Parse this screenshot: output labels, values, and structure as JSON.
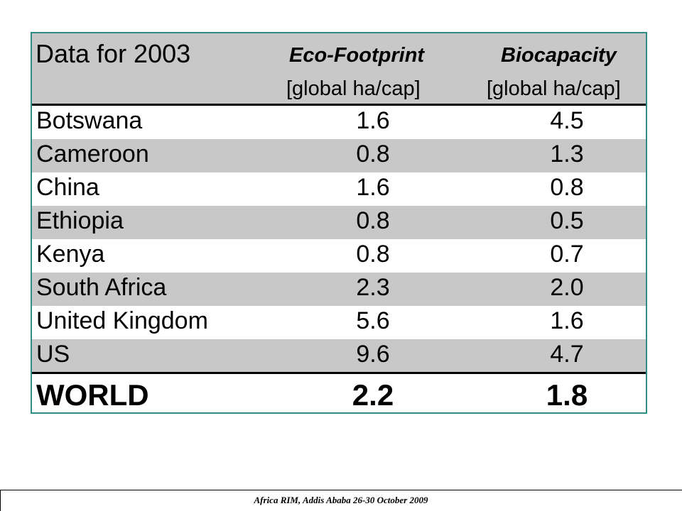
{
  "table": {
    "title": "Data for 2003",
    "col1_header": "Eco-Footprint",
    "col1_unit": "[global ha/cap]",
    "col2_header": "Biocapacity",
    "col2_unit": "[global ha/cap]",
    "rows": [
      {
        "country": "Botswana",
        "footprint": "1.6",
        "biocapacity": "4.5"
      },
      {
        "country": "Cameroon",
        "footprint": "0.8",
        "biocapacity": "1.3"
      },
      {
        "country": "China",
        "footprint": "1.6",
        "biocapacity": "0.8"
      },
      {
        "country": "Ethiopia",
        "footprint": "0.8",
        "biocapacity": "0.5"
      },
      {
        "country": "Kenya",
        "footprint": "0.8",
        "biocapacity": "0.7"
      },
      {
        "country": "South Africa",
        "footprint": "2.3",
        "biocapacity": "2.0"
      },
      {
        "country": "United Kingdom",
        "footprint": "5.6",
        "biocapacity": "1.6"
      },
      {
        "country": "US",
        "footprint": "9.6",
        "biocapacity": "4.7"
      }
    ],
    "total": {
      "country": "WORLD",
      "footprint": "2.2",
      "biocapacity": "1.8"
    }
  },
  "footer": {
    "text": "Africa RIM,  Addis Ababa 26-30 October 2009"
  },
  "colors": {
    "frame": "#2e8b86",
    "shaded_row": "#c8c8c8"
  }
}
